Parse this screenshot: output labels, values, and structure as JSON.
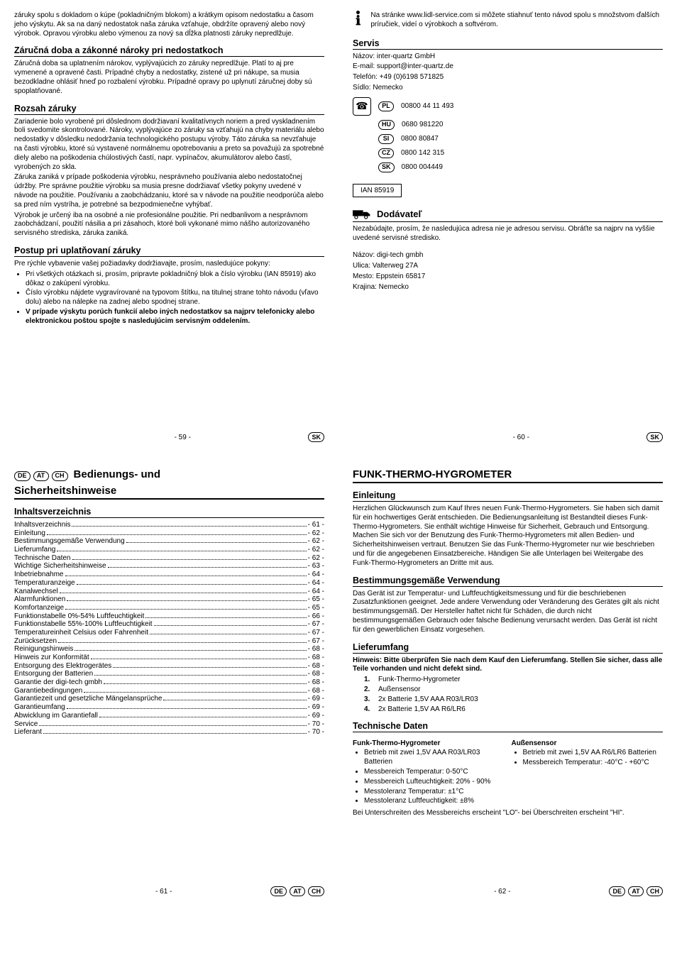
{
  "lang_pills": {
    "DE": "DE",
    "AT": "AT",
    "CH": "CH",
    "SK": "SK",
    "PL": "PL",
    "HU": "HU",
    "SI": "SI",
    "CZ": "CZ"
  },
  "p59": {
    "intro": "záruky spolu s dokladom o kúpe (pokladničným blokom) a krátkym opisom nedostatku a časom jeho výskytu. Ak sa na daný nedostatok naša záruka vzťahuje, obdržíte opravený alebo nový výrobok. Opravou výrobku alebo výmenou za nový sa dĺžka platnosti záruky nepredlžuje.",
    "h1": "Záručná doba a zákonné nároky pri nedostatkoch",
    "t1": "Záručná doba sa uplatnením nárokov, vyplývajúcich zo záruky nepredlžuje. Platí to aj pre vymenené a opravené časti. Prípadné chyby a nedostatky, zistené už pri nákupe, sa musia bezodkladne ohlásiť hneď po rozbalení výrobku. Prípadné opravy po uplynutí záručnej doby sú spoplatňované.",
    "h2": "Rozsah záruky",
    "t2a": "Zariadenie bolo vyrobené pri dôslednom dodržiavaní kvalitatívnych noriem a pred vyskladnením boli svedomite skontrolované. Nároky, vyplývajúce zo záruky sa vzťahujú na chyby materiálu alebo nedostatky v dôsledku nedodržania technologického postupu výroby. Táto záruka sa nevzťahuje na časti výrobku, ktoré sú vystavené normálnemu opotrebovaniu a preto sa považujú za spotrebné diely alebo na poškodenia chúlostivých častí, napr. vypínačov, akumulátorov alebo častí, vyrobených zo skla.",
    "t2b": "Záruka zaniká v prípade poškodenia výrobku, nesprávneho používania alebo nedostatočnej údržby. Pre správne použitie výrobku sa musia presne dodržiavať všetky pokyny uvedené v návode na použitie. Používaniu a zaobchádzaniu, ktoré sa v návode na použitie neodporúča alebo sa pred ním vystríha, je potrebné sa bezpodmienečne vyhýbať.",
    "t2c": "Výrobok je určený iba na osobné a nie profesionálne použitie. Pri nedbanlivom a nesprávnom zaobchádzaní, použití násilia a pri zásahoch, ktoré boli vykonané mimo nášho autorizovaného servisného strediska, záruka zaniká.",
    "h3": "Postup pri uplatňovaní záruky",
    "t3lead": "Pre rýchle vybavenie vašej požiadavky dodržiavajte, prosím, nasledujúce pokyny:",
    "b1": "Pri všetkých otázkach si, prosím, pripravte pokladničný blok a číslo výrobku (IAN 85919) ako dôkaz o zakúpení výrobku.",
    "b2": "Číslo výrobku nájdete vygravírované na typovom štítku, na titulnej strane tohto návodu (vľavo dolu) alebo na nálepke na zadnej alebo spodnej strane.",
    "b3": "V prípade výskytu porúch funkcií alebo iných nedostatkov sa najprv telefonicky alebo elektronickou poštou spojte s nasledujúcim servisným oddelením.",
    "page": "- 59 -"
  },
  "p60": {
    "info": "Na stránke www.lidl-service.com si môžete stiahnuť tento návod spolu s množstvom ďalších príručiek, videí o výrobkoch a softvérom.",
    "servis_h": "Servis",
    "servis_lines": {
      "name": "Názov: inter-quartz GmbH",
      "email": "E-mail: support@inter-quartz.de",
      "tel": "Telefón: +49 (0)6198 571825",
      "seat": "Sídlo: Nemecko"
    },
    "phones": {
      "PL": "00800 44 11 493",
      "HU": "0680 981220",
      "SI": "0800 80847",
      "CZ": "0800 142 315",
      "SK": "0800 004449"
    },
    "ian": "IAN 85919",
    "supplier_h": "Dodávateľ",
    "supplier_note": "Nezabúdajte, prosím, že nasledujúca adresa nie je adresou servisu. Obráťte sa najprv na vyššie uvedené servisné stredisko.",
    "addr": {
      "name": "Názov: digi-tech gmbh",
      "street": "Ulica: Valterweg 27A",
      "city": "Mesto: Eppstein 65817",
      "country": "Krajina: Nemecko"
    },
    "page": "- 60 -"
  },
  "p61": {
    "title1": "Bedienungs- und",
    "title2": "Sicherheitshinweise",
    "toc_h": "Inhaltsverzeichnis",
    "toc": [
      [
        "Inhaltsverzeichnis",
        "- 61 -"
      ],
      [
        "Einleitung",
        "- 62 -"
      ],
      [
        "Bestimmungsgemäße Verwendung",
        "- 62 -"
      ],
      [
        "Lieferumfang",
        "- 62 -"
      ],
      [
        "Technische Daten",
        "- 62 -"
      ],
      [
        "Wichtige Sicherheitshinweise",
        "- 63 -"
      ],
      [
        "Inbetriebnahme",
        "- 64 -"
      ],
      [
        "Temperaturanzeige",
        "- 64 -"
      ],
      [
        "Kanalwechsel",
        "- 64 -"
      ],
      [
        "Alarmfunktionen",
        "- 65 -"
      ],
      [
        "Komfortanzeige",
        "- 65 -"
      ],
      [
        "Funktionstabelle 0%-54% Luftfeuchtigkeit",
        "- 66 -"
      ],
      [
        "Funktionstabelle 55%-100% Luftfeuchtigkeit",
        "- 67 -"
      ],
      [
        "Temperatureinheit Celsius oder Fahrenheit",
        "- 67 -"
      ],
      [
        "Zurücksetzen",
        "- 67 -"
      ],
      [
        "Reinigungshinweis",
        "- 68 -"
      ],
      [
        "Hinweis zur Konformität",
        "- 68 -"
      ],
      [
        "Entsorgung des Elektrogerätes",
        "- 68 -"
      ],
      [
        "Entsorgung der Batterien",
        "- 68 -"
      ],
      [
        "Garantie der digi-tech gmbh",
        "- 68 -"
      ],
      [
        "Garantiebedingungen",
        "- 68 -"
      ],
      [
        "Garantiezeit und gesetzliche Mängelansprüche",
        "- 69 -"
      ],
      [
        "Garantieumfang",
        "- 69 -"
      ],
      [
        "Abwicklung im Garantiefall",
        "- 69 -"
      ],
      [
        "Service",
        "- 70 -"
      ],
      [
        "Lieferant",
        "- 70 -"
      ]
    ],
    "page": "- 61 -"
  },
  "p62": {
    "title": "FUNK-THERMO-HYGROMETER",
    "h1": "Einleitung",
    "t1": "Herzlichen Glückwunsch zum Kauf Ihres neuen Funk-Thermo-Hygrometers. Sie haben sich damit für ein hochwertiges Gerät entschieden. Die Bedienungsanleitung ist Bestandteil dieses Funk-Thermo-Hygrometers. Sie enthält wichtige Hinweise für Sicherheit, Gebrauch und Entsorgung. Machen Sie sich vor der Benutzung des Funk-Thermo-Hygrometers mit allen Bedien- und Sicherheitshinweisen vertraut. Benutzen Sie das Funk-Thermo-Hygrometer nur wie beschrieben und für die angegebenen Einsatzbereiche.  Händigen Sie alle Unterlagen bei Weitergabe des Funk-Thermo-Hygrometers an Dritte mit aus.",
    "h2": "Bestimmungsgemäße Verwendung",
    "t2": "Das Gerät ist zur Temperatur- und Luftfeuchtigkeitsmessung und für die beschriebenen Zusatzfunktionen geeignet. Jede andere Verwendung oder Veränderung des Gerätes gilt als nicht bestimmungsgemäß. Der Hersteller haftet nicht für Schäden, die durch nicht bestimmungsgemäßen Gebrauch oder falsche Bedienung verursacht werden. Das Gerät ist nicht für den gewerblichen Einsatz vorgesehen.",
    "h3": "Lieferumfang",
    "t3note": "Hinweis: Bitte überprüfen Sie nach dem Kauf den Lieferumfang. Stellen Sie sicher, dass alle Teile vorhanden und nicht defekt sind.",
    "items": [
      "Funk-Thermo-Hygrometer",
      "Außensensor",
      "2x Batterie 1,5V AAA R03/LR03",
      "2x Batterie 1,5V AA R6/LR6"
    ],
    "h4": "Technische Daten",
    "col1_h": "Funk-Thermo-Hygrometer",
    "col1": [
      "Betrieb mit zwei 1,5V AAA R03/LR03 Batterien",
      "Messbereich Temperatur: 0-50°C",
      "Messbereich Lufteuchtigkeit: 20% - 90%",
      "Messtoleranz Temperatur: ±1°C",
      "Messtoleranz Luftfeuchtigkeit: ±8%"
    ],
    "col2_h": "Außensensor",
    "col2": [
      "Betrieb mit zwei 1,5V AA R6/LR6 Batterien",
      "Messbereich Temperatur: -40°C - +60°C"
    ],
    "tail": "Bei Unterschreiten des Messbereichs erscheint \"LO\"- bei Überschreiten erscheint \"HI\".",
    "page": "- 62 -"
  }
}
